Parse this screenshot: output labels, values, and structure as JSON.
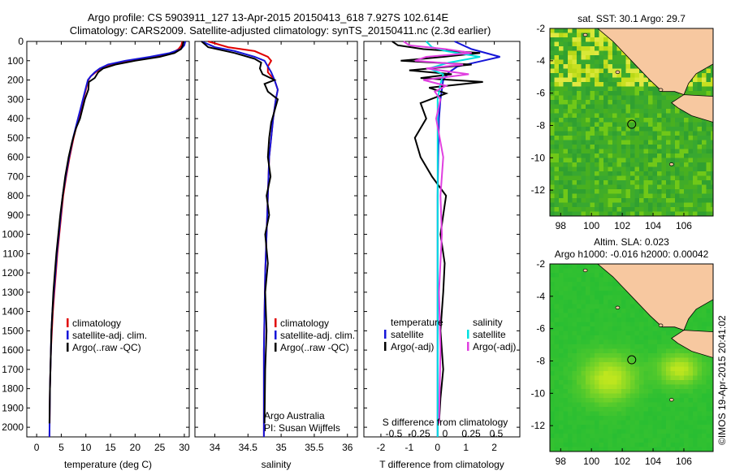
{
  "header": {
    "title_line1": "Argo profile: CS 5903911_127 13-Apr-2015 20150413_618 7.927S 102.614E",
    "title_line2": "Climatology: CARS2009. Satellite-adjusted climatology: synTS_20150411.nc (2.3d earlier)"
  },
  "colors": {
    "climatology": "#e00000",
    "satellite": "#1515d8",
    "argo": "#000000",
    "satellite_s": "#00e0e0",
    "argo_s": "#e040e0",
    "land": "#f7c8a0"
  },
  "chart_data": [
    {
      "type": "line",
      "id": "temperature",
      "xlabel": "temperature (deg C)",
      "ylabel": "",
      "xlim": [
        -2,
        31
      ],
      "ylim": [
        2050,
        0
      ],
      "xticks": [
        0,
        5,
        10,
        15,
        20,
        25,
        30
      ],
      "yticks": [
        0,
        100,
        200,
        300,
        400,
        500,
        600,
        700,
        800,
        900,
        1000,
        1100,
        1200,
        1300,
        1400,
        1500,
        1600,
        1700,
        1800,
        1900,
        2000
      ],
      "legend": [
        "climatology",
        "satellite-adj. clim.",
        "Argo(..raw -QC)"
      ],
      "series": [
        {
          "name": "climatology",
          "color": "#e00000",
          "x": [
            29.6,
            29.4,
            28.8,
            27.5,
            24,
            19,
            15,
            13,
            12,
            11,
            10.5,
            10,
            9.5,
            9,
            8.5,
            7.5,
            6.7,
            6,
            5.4,
            5,
            4.6,
            4.2,
            3.9,
            3.6,
            3.3,
            3.1,
            2.9,
            2.8,
            2.7,
            2.6
          ],
          "y": [
            0,
            20,
            40,
            60,
            80,
            100,
            120,
            140,
            160,
            180,
            200,
            250,
            300,
            350,
            400,
            500,
            600,
            700,
            800,
            900,
            1000,
            1100,
            1200,
            1300,
            1400,
            1500,
            1600,
            1700,
            1800,
            2050
          ]
        },
        {
          "name": "satellite-adj. clim.",
          "color": "#1515d8",
          "x": [
            30.2,
            30,
            29.3,
            27,
            23,
            18,
            14.5,
            12.8,
            11.8,
            11,
            10.4,
            9.9,
            9.4,
            8.9,
            8.4,
            7.4,
            6.6,
            5.9,
            5.3,
            4.9,
            4.5,
            4.1,
            3.8,
            3.5,
            3.2,
            3.0,
            2.9,
            2.8,
            2.7,
            2.6
          ],
          "y": [
            0,
            20,
            40,
            60,
            80,
            100,
            120,
            140,
            160,
            180,
            200,
            250,
            300,
            350,
            400,
            500,
            600,
            700,
            800,
            900,
            1000,
            1100,
            1200,
            1300,
            1400,
            1500,
            1600,
            1700,
            1800,
            2050
          ]
        },
        {
          "name": "Argo(..raw -QC)",
          "color": "#000000",
          "x": [
            29.8,
            29.7,
            29.3,
            28,
            25,
            20,
            16,
            13.5,
            12.5,
            11.8,
            10.6,
            10.5,
            9.8,
            9.3,
            8.8,
            8,
            7.2,
            6.5,
            5.8,
            5.3,
            4.8,
            4.4,
            4.0,
            3.7,
            3.4,
            3.2,
            3.0,
            2.9,
            2.8,
            2.7,
            2.6
          ],
          "y": [
            0,
            20,
            40,
            60,
            80,
            100,
            120,
            140,
            160,
            190,
            210,
            250,
            300,
            350,
            400,
            450,
            520,
            600,
            700,
            800,
            900,
            1000,
            1100,
            1200,
            1300,
            1400,
            1500,
            1600,
            1700,
            1800,
            1980
          ]
        }
      ]
    },
    {
      "type": "line",
      "id": "salinity",
      "xlabel": "salinity",
      "xlim": [
        33.7,
        36.15
      ],
      "ylim": [
        2050,
        0
      ],
      "xticks": [
        34,
        34.5,
        35,
        35.5,
        36
      ],
      "legend": [
        "climatology",
        "satellite-adj. clim.",
        "Argo(..raw -QC)"
      ],
      "annotation": [
        "Argo Australia",
        "PI: Susan Wijffels"
      ],
      "series": [
        {
          "name": "climatology",
          "color": "#e00000",
          "x": [
            33.9,
            34.2,
            34.6,
            34.8,
            34.85,
            34.8,
            34.8,
            34.9,
            34.95,
            34.92,
            34.88,
            34.85,
            34.82,
            34.8,
            34.78,
            34.76,
            34.75,
            34.74,
            34.74,
            34.74
          ],
          "y": [
            0,
            30,
            50,
            80,
            100,
            130,
            160,
            200,
            250,
            300,
            400,
            500,
            600,
            800,
            1000,
            1200,
            1400,
            1600,
            1800,
            2050
          ]
        },
        {
          "name": "satellite-adj. clim.",
          "color": "#1515d8",
          "x": [
            33.8,
            34.0,
            34.3,
            34.6,
            34.75,
            34.8,
            34.85,
            34.9,
            34.95,
            34.92,
            34.88,
            34.85,
            34.82,
            34.8,
            34.78,
            34.76,
            34.75,
            34.74,
            34.74,
            34.74
          ],
          "y": [
            0,
            30,
            50,
            80,
            100,
            130,
            160,
            200,
            250,
            300,
            400,
            500,
            600,
            800,
            1000,
            1200,
            1400,
            1600,
            1800,
            2050
          ]
        },
        {
          "name": "Argo(..raw -QC)",
          "color": "#000000",
          "x": [
            33.8,
            33.9,
            34.3,
            34.6,
            34.7,
            34.68,
            34.72,
            34.9,
            34.75,
            34.8,
            34.95,
            34.9,
            34.85,
            34.82,
            34.8,
            34.84,
            34.78,
            34.82,
            34.76,
            34.8,
            34.76,
            34.78,
            34.76,
            34.75
          ],
          "y": [
            0,
            30,
            60,
            90,
            110,
            140,
            170,
            200,
            220,
            260,
            300,
            360,
            420,
            500,
            600,
            700,
            800,
            900,
            1000,
            1150,
            1300,
            1500,
            1700,
            1980
          ]
        }
      ]
    },
    {
      "type": "line",
      "id": "difference",
      "xlabel": "T difference from climatology",
      "xlabel_top": "S difference from climatology",
      "xlim": [
        -2.6,
        2.9
      ],
      "ylim": [
        2050,
        0
      ],
      "xticks": [
        -2,
        -1,
        0,
        1,
        2
      ],
      "xticks_s": [
        "-0.5",
        "-0.25",
        "0",
        "0.25",
        "0.5"
      ],
      "legend_left_title": "temperature",
      "legend_right_title": "salinity",
      "legend_left": [
        "satellite",
        "Argo(-adj)"
      ],
      "legend_right": [
        "satellite",
        "Argo(-adj)"
      ],
      "series": [
        {
          "name": "T satellite",
          "color": "#1515d8",
          "x": [
            0.6,
            0.9,
            1.2,
            2.2,
            1.6,
            0.7,
            0.4,
            0.2,
            0.1,
            0.05,
            0.02,
            0,
            0,
            0,
            0,
            0
          ],
          "y": [
            0,
            20,
            40,
            80,
            100,
            130,
            160,
            200,
            300,
            400,
            600,
            800,
            1000,
            1400,
            1800,
            2050
          ]
        },
        {
          "name": "T Argo(-adj)",
          "color": "#000000",
          "x": [
            -1.6,
            -1.4,
            -0.5,
            1.5,
            0.2,
            -1.3,
            1.2,
            -1.0,
            0.5,
            -0.6,
            1.6,
            -0.3,
            0.3,
            -0.6,
            -0.4,
            -0.8,
            -0.6,
            -0.2,
            0.3,
            0.2,
            0.1,
            0.25,
            0.2,
            0.1,
            0.2,
            0.1,
            0.05
          ],
          "y": [
            0,
            20,
            40,
            60,
            80,
            100,
            120,
            150,
            170,
            190,
            210,
            240,
            270,
            320,
            400,
            500,
            600,
            700,
            800,
            900,
            1000,
            1150,
            1300,
            1500,
            1700,
            1850,
            1980
          ]
        },
        {
          "name": "S satellite",
          "color": "#00e0e0",
          "x": [
            -0.4,
            -0.2,
            0.3,
            1.5,
            0.4,
            -0.3,
            0.2,
            0.1,
            0,
            0,
            0,
            0,
            0,
            0
          ],
          "y": [
            0,
            30,
            50,
            80,
            110,
            140,
            170,
            220,
            300,
            500,
            800,
            1200,
            1600,
            2050
          ]
        },
        {
          "name": "S Argo(-adj)",
          "color": "#e040e0",
          "x": [
            -1.2,
            -1.0,
            0.3,
            1.2,
            -0.4,
            -0.8,
            0.9,
            -0.4,
            1.1,
            -0.5,
            0.3,
            -0.1,
            0.1,
            -0.05,
            0.2,
            0.1,
            0.15,
            0.05,
            0.1,
            0.05
          ],
          "y": [
            0,
            20,
            40,
            60,
            80,
            100,
            120,
            140,
            170,
            200,
            230,
            260,
            300,
            400,
            600,
            800,
            1000,
            1300,
            1600,
            1980
          ]
        }
      ]
    },
    {
      "type": "heatmap",
      "id": "sst_map",
      "title": "sat. SST: 30.1 Argo: 29.7",
      "xticks": [
        98,
        100,
        102,
        104,
        106
      ],
      "yticks": [
        -2,
        -4,
        -6,
        -8,
        -10,
        -12
      ],
      "xlim": [
        97.3,
        107.9
      ],
      "ylim": [
        -13.6,
        -2
      ],
      "argo_position": {
        "lon": 102.614,
        "lat": -7.927
      }
    },
    {
      "type": "heatmap",
      "id": "sla_map",
      "title": "Altim. SLA: 0.023",
      "subtitle": "Argo h1000: -0.016 h2000: 0.00042",
      "xticks": [
        98,
        100,
        102,
        104,
        106
      ],
      "yticks": [
        -2,
        -4,
        -6,
        -8,
        -10,
        -12
      ],
      "xlim": [
        97.3,
        107.9
      ],
      "ylim": [
        -13.6,
        -2
      ],
      "argo_position": {
        "lon": 102.614,
        "lat": -7.927
      }
    }
  ],
  "footer": {
    "imos_stamp": "©IMOS 19-Apr-2015 20:41:02"
  }
}
